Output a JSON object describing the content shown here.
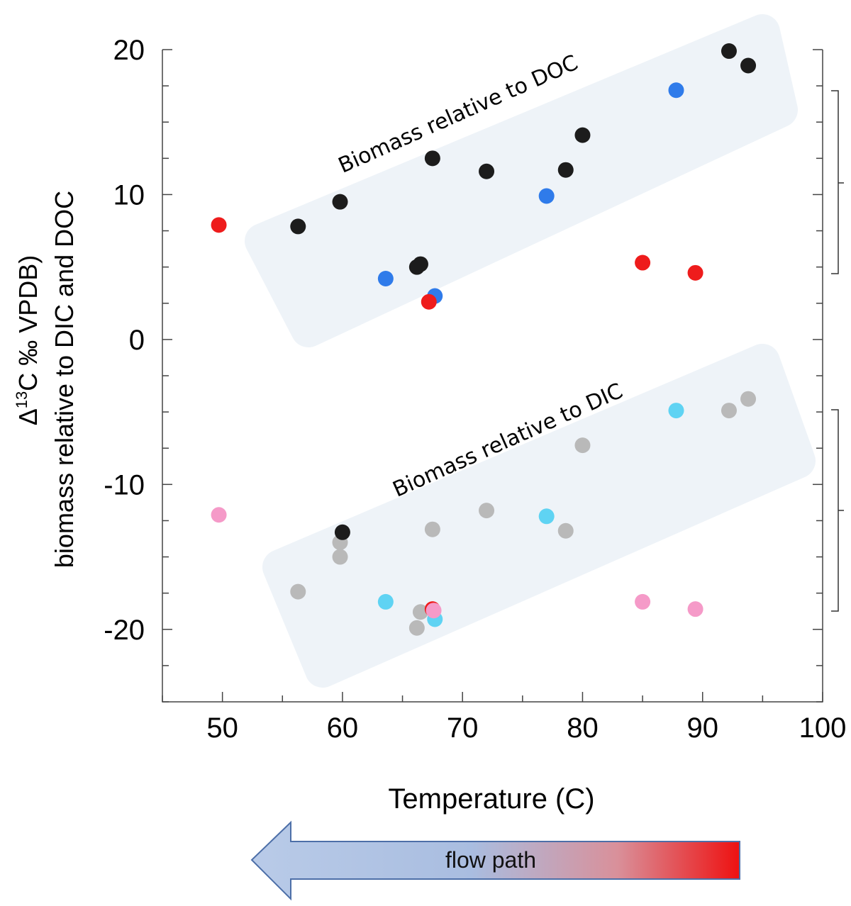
{
  "chart_data": {
    "type": "scatter",
    "xlabel": "Temperature (C)",
    "ylabel_line1": "Δ13C ‰ VPDB)",
    "ylabel_line1_parts": {
      "delta": "Δ",
      "superscript": "13",
      "rest": "C  ‰  VPDB)"
    },
    "ylabel_line2": "biomass relative to DIC and DOC",
    "xlim": [
      45,
      100
    ],
    "ylim": [
      -25,
      20
    ],
    "x_ticks": [
      "50",
      "60",
      "70",
      "80",
      "90",
      "100"
    ],
    "x_tick_values": [
      50,
      60,
      70,
      80,
      90,
      100
    ],
    "y_ticks": [
      "20",
      "10",
      "0",
      "-10",
      "-20"
    ],
    "y_tick_values": [
      20,
      10,
      0,
      -10,
      -20
    ],
    "grid": false,
    "band_labels": [
      "Biomass relative to DOC",
      "Biomass relative to DIC"
    ],
    "series": [
      {
        "color": "#1c1c1c",
        "points": [
          [
            56.3,
            7.8
          ],
          [
            59.8,
            9.5
          ],
          [
            66.2,
            5.0
          ],
          [
            66.5,
            5.2
          ],
          [
            67.5,
            12.5
          ],
          [
            72,
            11.6
          ],
          [
            78.6,
            11.7
          ],
          [
            80,
            14.1
          ],
          [
            92.2,
            19.9
          ],
          [
            93.8,
            18.9
          ]
        ]
      },
      {
        "color": "#2f7bea",
        "points": [
          [
            63.6,
            4.2
          ],
          [
            67.7,
            3.0
          ],
          [
            77,
            9.9
          ],
          [
            87.8,
            17.2
          ]
        ]
      },
      {
        "color": "#ee1c1c",
        "points": [
          [
            49.7,
            7.9
          ],
          [
            67.2,
            2.6
          ],
          [
            85,
            5.3
          ],
          [
            89.4,
            4.6
          ]
        ]
      },
      {
        "color": "#b9b9b9",
        "points": [
          [
            56.3,
            -17.4
          ],
          [
            59.8,
            -15.0
          ],
          [
            59.8,
            -14.0
          ],
          [
            66.2,
            -19.9
          ],
          [
            66.5,
            -18.8
          ],
          [
            67.5,
            -13.1
          ],
          [
            72,
            -11.8
          ],
          [
            78.6,
            -13.2
          ],
          [
            80,
            -7.3
          ],
          [
            92.2,
            -4.9
          ],
          [
            93.8,
            -4.1
          ]
        ]
      },
      {
        "color": "#1c1c1c",
        "points": [
          [
            60,
            -13.3
          ]
        ]
      },
      {
        "color": "#5fd3f3",
        "points": [
          [
            63.6,
            -18.1
          ],
          [
            67.7,
            -19.3
          ],
          [
            77,
            -12.2
          ],
          [
            87.8,
            -4.9
          ]
        ]
      },
      {
        "color": "#ee1c1c",
        "points": [
          [
            67.5,
            -18.6
          ]
        ]
      },
      {
        "color": "#f59ac8",
        "points": [
          [
            49.7,
            -12.1
          ],
          [
            67.6,
            -18.7
          ],
          [
            85,
            -18.1
          ],
          [
            89.4,
            -18.6
          ]
        ]
      }
    ]
  },
  "flow_arrow": {
    "label": "flow path",
    "colors": [
      "#b3c6e6",
      "#ee1111"
    ]
  }
}
